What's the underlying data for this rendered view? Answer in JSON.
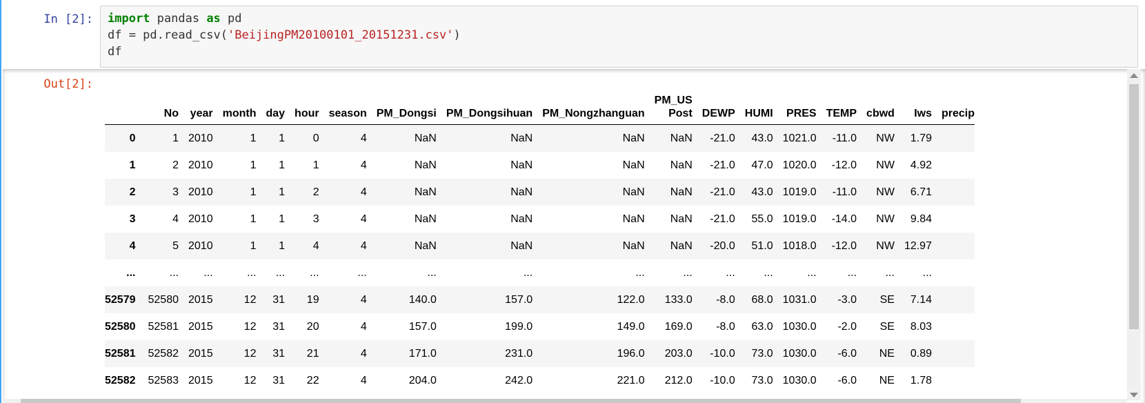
{
  "input_cell": {
    "prompt": "In [2]:",
    "code": {
      "line1": {
        "kw1": "import",
        "mid": " pandas ",
        "kw2": "as",
        "end": " pd"
      },
      "line2": {
        "pre": "df = pd.read_csv(",
        "str": "'BeijingPM20100101_20151231.csv'",
        "post": ")"
      },
      "line3": "df"
    }
  },
  "output_cell": {
    "prompt": "Out[2]:"
  },
  "dataframe": {
    "columns": [
      "No",
      "year",
      "month",
      "day",
      "hour",
      "season",
      "PM_Dongsi",
      "PM_Dongsihuan",
      "PM_Nongzhanguan",
      "PM_US\nPost",
      "DEWP",
      "HUMI",
      "PRES",
      "TEMP",
      "cbwd",
      "Iws",
      "precip"
    ],
    "rows": [
      {
        "index": "0",
        "cells": [
          "1",
          "2010",
          "1",
          "1",
          "0",
          "4",
          "NaN",
          "NaN",
          "NaN",
          "NaN",
          "-21.0",
          "43.0",
          "1021.0",
          "-11.0",
          "NW",
          "1.79",
          ""
        ]
      },
      {
        "index": "1",
        "cells": [
          "2",
          "2010",
          "1",
          "1",
          "1",
          "4",
          "NaN",
          "NaN",
          "NaN",
          "NaN",
          "-21.0",
          "47.0",
          "1020.0",
          "-12.0",
          "NW",
          "4.92",
          ""
        ]
      },
      {
        "index": "2",
        "cells": [
          "3",
          "2010",
          "1",
          "1",
          "2",
          "4",
          "NaN",
          "NaN",
          "NaN",
          "NaN",
          "-21.0",
          "43.0",
          "1019.0",
          "-11.0",
          "NW",
          "6.71",
          ""
        ]
      },
      {
        "index": "3",
        "cells": [
          "4",
          "2010",
          "1",
          "1",
          "3",
          "4",
          "NaN",
          "NaN",
          "NaN",
          "NaN",
          "-21.0",
          "55.0",
          "1019.0",
          "-14.0",
          "NW",
          "9.84",
          ""
        ]
      },
      {
        "index": "4",
        "cells": [
          "5",
          "2010",
          "1",
          "1",
          "4",
          "4",
          "NaN",
          "NaN",
          "NaN",
          "NaN",
          "-20.0",
          "51.0",
          "1018.0",
          "-12.0",
          "NW",
          "12.97",
          ""
        ]
      },
      {
        "index": "...",
        "cells": [
          "...",
          "...",
          "...",
          "...",
          "...",
          "...",
          "...",
          "...",
          "...",
          "...",
          "...",
          "...",
          "...",
          "...",
          "...",
          "...",
          ""
        ]
      },
      {
        "index": "52579",
        "cells": [
          "52580",
          "2015",
          "12",
          "31",
          "19",
          "4",
          "140.0",
          "157.0",
          "122.0",
          "133.0",
          "-8.0",
          "68.0",
          "1031.0",
          "-3.0",
          "SE",
          "7.14",
          ""
        ]
      },
      {
        "index": "52580",
        "cells": [
          "52581",
          "2015",
          "12",
          "31",
          "20",
          "4",
          "157.0",
          "199.0",
          "149.0",
          "169.0",
          "-8.0",
          "63.0",
          "1030.0",
          "-2.0",
          "SE",
          "8.03",
          ""
        ]
      },
      {
        "index": "52581",
        "cells": [
          "52582",
          "2015",
          "12",
          "31",
          "21",
          "4",
          "171.0",
          "231.0",
          "196.0",
          "203.0",
          "-10.0",
          "73.0",
          "1030.0",
          "-6.0",
          "NE",
          "0.89",
          ""
        ]
      },
      {
        "index": "52582",
        "cells": [
          "52583",
          "2015",
          "12",
          "31",
          "22",
          "4",
          "204.0",
          "242.0",
          "221.0",
          "212.0",
          "-10.0",
          "73.0",
          "1030.0",
          "-6.0",
          "NE",
          "1.78",
          ""
        ]
      }
    ]
  },
  "colors": {
    "in_prompt": "#303f9f",
    "out_prompt": "#d84315",
    "keyword": "#008000",
    "string": "#ba2121",
    "cell_selected_bar": "#42a5f5"
  }
}
